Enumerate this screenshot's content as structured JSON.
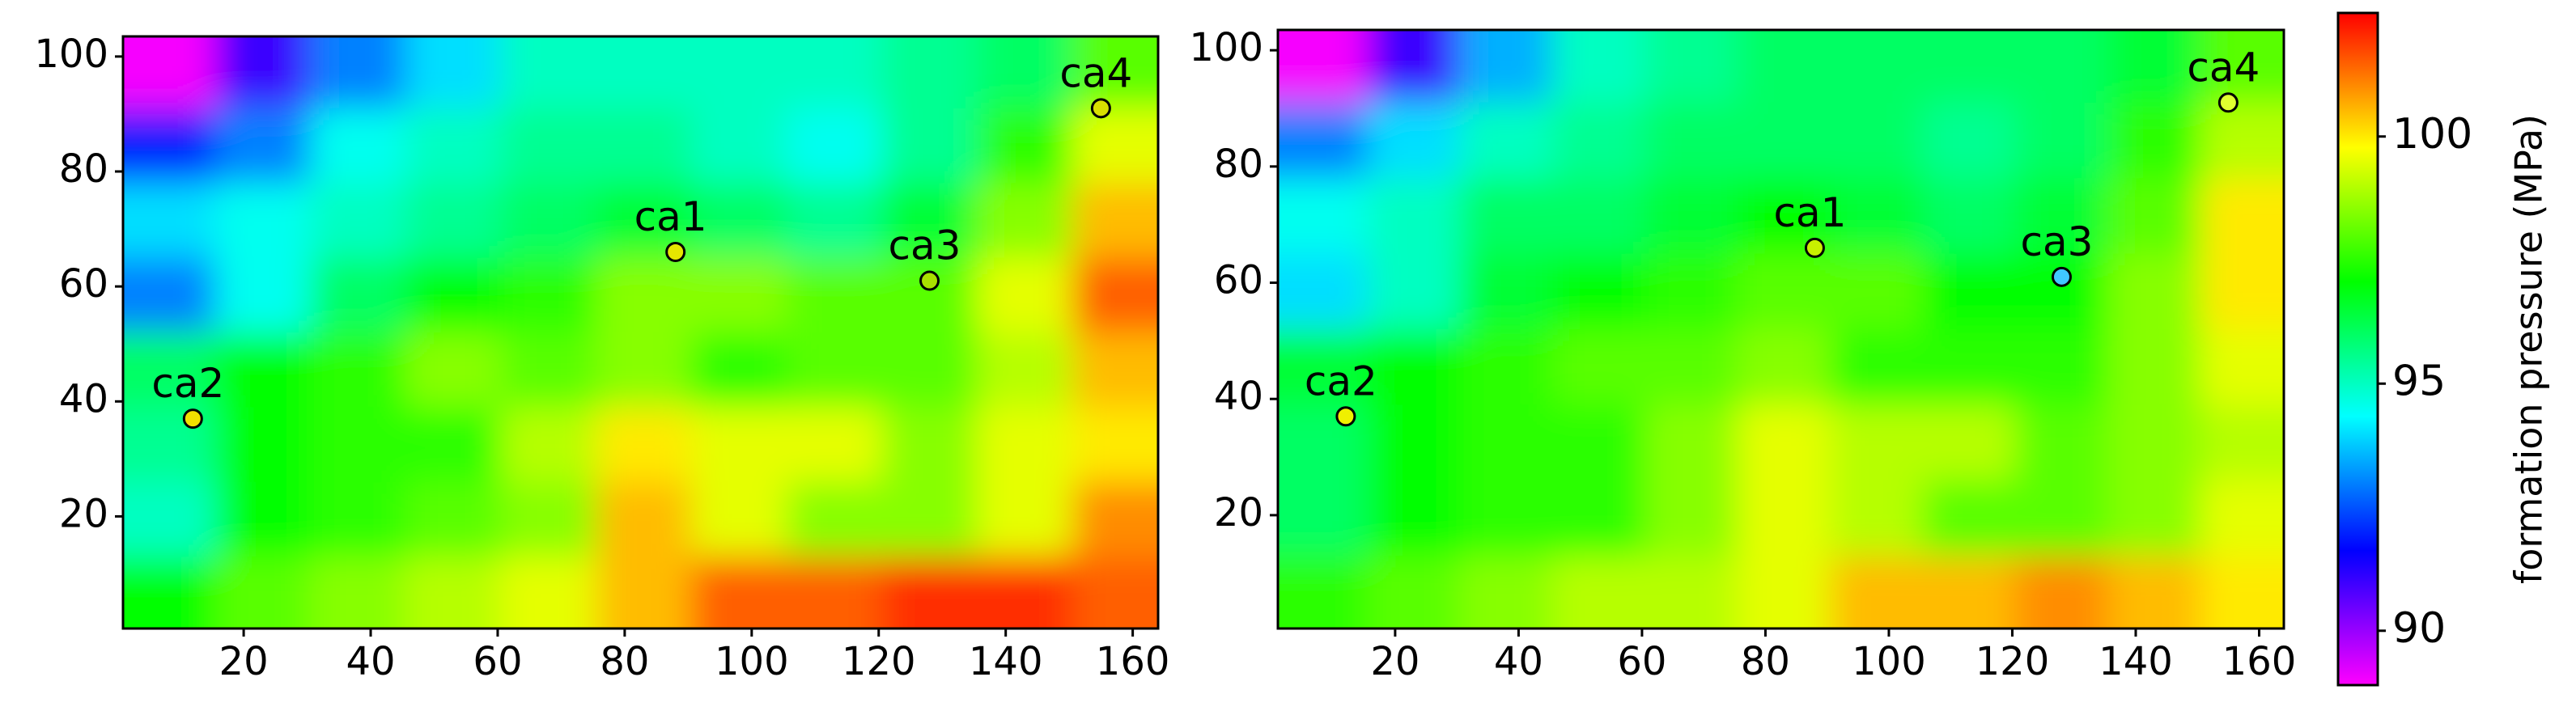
{
  "chart_data": [
    {
      "type": "heatmap",
      "x": [
        8,
        23,
        38,
        53,
        68,
        83,
        98,
        113,
        128,
        143,
        158
      ],
      "y": [
        97.5,
        84.5,
        71.5,
        58.5,
        45.5,
        32.5,
        19.5,
        6.5
      ],
      "values": [
        [
          89,
          91,
          93,
          94,
          95,
          95,
          95,
          95,
          95.5,
          96,
          98
        ],
        [
          92,
          93,
          94.5,
          95,
          95.5,
          95.5,
          95,
          94.5,
          95.5,
          97.5,
          99.5
        ],
        [
          94,
          94.5,
          95,
          95.5,
          96,
          96.5,
          96,
          95.5,
          96.5,
          98.5,
          100.5
        ],
        [
          93,
          94.5,
          96,
          97,
          97.5,
          98.5,
          98.5,
          98,
          98,
          99.5,
          101.5
        ],
        [
          96,
          97,
          97.5,
          98.5,
          98,
          98.5,
          97.5,
          98,
          98,
          99,
          100.5
        ],
        [
          95.5,
          97,
          97.5,
          97.5,
          99,
          100,
          99.5,
          99.5,
          98.5,
          99.5,
          100
        ],
        [
          95,
          97,
          97.5,
          98,
          98.5,
          100.5,
          99.5,
          98.5,
          98.5,
          99.5,
          101
        ],
        [
          97,
          98,
          98.5,
          99,
          99.5,
          100.5,
          101.5,
          101.5,
          102,
          102,
          101.5
        ]
      ],
      "xlim": [
        1,
        164
      ],
      "ylim": [
        0.5,
        103.5
      ],
      "xticks": [
        20,
        40,
        60,
        80,
        100,
        120,
        140,
        160
      ],
      "yticks": [
        20,
        40,
        60,
        80,
        100
      ],
      "clim": [
        88.9,
        102.5
      ],
      "colormap": [
        "#ff00ff",
        "#0000ff",
        "#00ffff",
        "#00ff00",
        "#ffff00",
        "#ff0000"
      ],
      "markers": [
        {
          "name": "ca1",
          "x": 88,
          "y": 66,
          "color": "#e6e600"
        },
        {
          "name": "ca2",
          "x": 12,
          "y": 37,
          "color": "#f0e000"
        },
        {
          "name": "ca3",
          "x": 128,
          "y": 61,
          "color": "#a8e000"
        },
        {
          "name": "ca4",
          "x": 155,
          "y": 91,
          "color": "#d8e000"
        }
      ]
    },
    {
      "type": "heatmap",
      "x": [
        8,
        23,
        38,
        53,
        68,
        83,
        98,
        113,
        128,
        143,
        158
      ],
      "y": [
        97.5,
        84.5,
        71.5,
        58.5,
        45.5,
        32.5,
        19.5,
        6.5
      ],
      "values": [
        [
          89,
          91,
          93.5,
          95,
          95.5,
          96,
          96,
          96,
          96,
          96.5,
          98
        ],
        [
          93,
          94,
          95,
          95.5,
          96,
          96,
          96,
          95.5,
          96,
          97.5,
          99
        ],
        [
          94.5,
          95,
          96,
          96,
          96.5,
          97,
          96.5,
          96,
          96.5,
          98,
          100
        ],
        [
          94,
          95,
          96.5,
          97,
          97.5,
          98,
          98,
          97,
          97,
          98.5,
          100
        ],
        [
          96.5,
          97,
          97.5,
          98,
          98,
          98.5,
          97.5,
          97.5,
          97.5,
          98.5,
          99.5
        ],
        [
          96,
          97,
          97.5,
          97.5,
          98.5,
          99.5,
          99,
          99,
          98,
          98.5,
          99
        ],
        [
          96,
          97,
          97.5,
          97.5,
          98.5,
          99.5,
          99,
          98,
          98,
          98.5,
          99.5
        ],
        [
          97.5,
          98,
          98.5,
          99,
          99,
          99.5,
          100.5,
          100.5,
          101,
          100.5,
          100
        ]
      ],
      "xlim": [
        1,
        164
      ],
      "ylim": [
        0.5,
        103.5
      ],
      "xticks": [
        20,
        40,
        60,
        80,
        100,
        120,
        140,
        160
      ],
      "yticks": [
        20,
        40,
        60,
        80,
        100
      ],
      "clim": [
        88.9,
        102.5
      ],
      "colormap": [
        "#ff00ff",
        "#0000ff",
        "#00ffff",
        "#00ff00",
        "#ffff00",
        "#ff0000"
      ],
      "markers": [
        {
          "name": "ca1",
          "x": 88,
          "y": 66,
          "color": "#c8f000"
        },
        {
          "name": "ca2",
          "x": 12,
          "y": 37,
          "color": "#f0f000"
        },
        {
          "name": "ca3",
          "x": 128,
          "y": 61,
          "color": "#40c8ff"
        },
        {
          "name": "ca4",
          "x": 155,
          "y": 91,
          "color": "#e0ff30"
        }
      ],
      "colorbar": {
        "label": "formation pressure (MPa)",
        "ticks": [
          90,
          95,
          100
        ]
      }
    }
  ]
}
